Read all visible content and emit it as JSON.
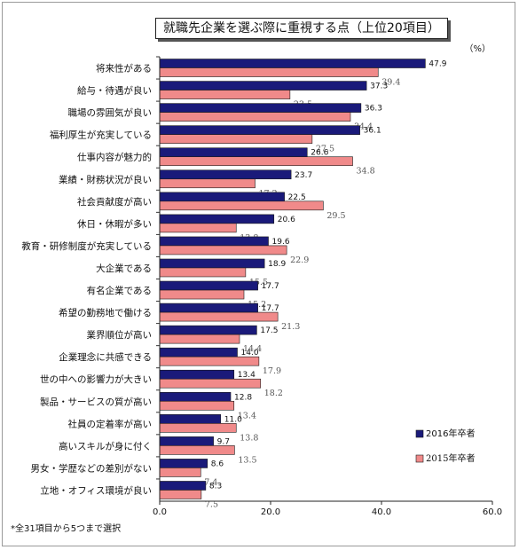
{
  "title": "就職先企業を選ぶ際に重視する点（上位20項目）",
  "unit_label": "（%）",
  "footnote": "*全31項目から5つまで選択",
  "chart_data": {
    "type": "bar",
    "orientation": "horizontal",
    "title": "就職先企業を選ぶ際に重視する点（上位20項目）",
    "categories": [
      "将来性がある",
      "給与・待遇が良い",
      "職場の雰囲気が良い",
      "福利厚生が充実している",
      "仕事内容が魅力的",
      "業績・財務状況が良い",
      "社会貢献度が高い",
      "休日・休暇が多い",
      "教育・研修制度が充実している",
      "大企業である",
      "有名企業である",
      "希望の勤務地で働ける",
      "業界順位が高い",
      "企業理念に共感できる",
      "世の中への影響力が大きい",
      "製品・サービスの質が高い",
      "社員の定着率が高い",
      "高いスキルが身に付く",
      "男女・学歴などの差別がない",
      "立地・オフィス環境が良い"
    ],
    "series": [
      {
        "name": "2016年卒者",
        "color": "#1a1a7a",
        "values": [
          47.9,
          37.3,
          36.3,
          36.1,
          26.6,
          23.7,
          22.5,
          20.6,
          19.6,
          18.9,
          17.7,
          17.7,
          17.5,
          14.0,
          13.4,
          12.8,
          11.0,
          9.7,
          8.6,
          8.3
        ]
      },
      {
        "name": "2015年卒者",
        "color": "#f08a8a",
        "values": [
          39.4,
          23.5,
          34.4,
          27.5,
          34.8,
          17.2,
          29.5,
          13.8,
          22.9,
          15.5,
          15.2,
          21.3,
          14.4,
          17.9,
          18.2,
          13.4,
          13.8,
          13.5,
          7.4,
          7.5
        ]
      }
    ],
    "xlim": [
      0,
      60
    ],
    "xticks": [
      "0.0",
      "20.0",
      "40.0",
      "60.0"
    ],
    "grid": false,
    "legend_position": "right"
  }
}
